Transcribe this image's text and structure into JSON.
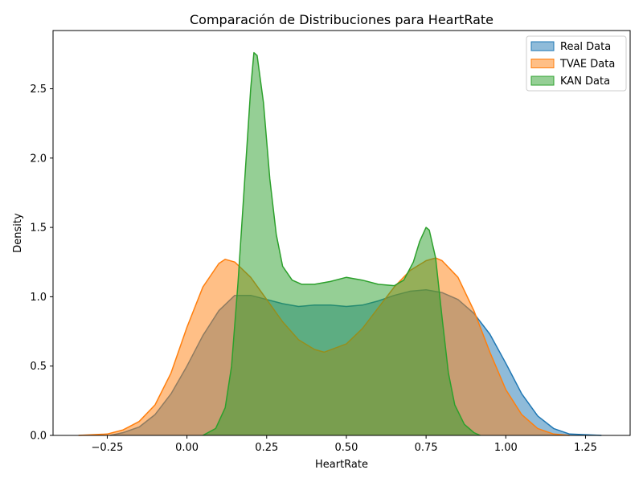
{
  "chart_data": {
    "type": "area",
    "title": "Comparación de Distribuciones para HeartRate",
    "xlabel": "HeartRate",
    "ylabel": "Density",
    "xlim": [
      -0.42,
      1.39
    ],
    "ylim": [
      0,
      2.92
    ],
    "xticks": [
      -0.25,
      0.0,
      0.25,
      0.5,
      0.75,
      1.0,
      1.25
    ],
    "xtick_labels": [
      "−0.25",
      "0.00",
      "0.25",
      "0.50",
      "0.75",
      "1.00",
      "1.25"
    ],
    "yticks": [
      0.0,
      0.5,
      1.0,
      1.5,
      2.0,
      2.5
    ],
    "ytick_labels": [
      "0.0",
      "0.5",
      "1.0",
      "1.5",
      "2.0",
      "2.5"
    ],
    "grid": false,
    "legend_position": "top-right",
    "series": [
      {
        "name": "Real Data",
        "color": "#1f77b4",
        "points": [
          [
            -0.24,
            0.0
          ],
          [
            -0.2,
            0.02
          ],
          [
            -0.15,
            0.06
          ],
          [
            -0.1,
            0.15
          ],
          [
            -0.05,
            0.3
          ],
          [
            0.0,
            0.5
          ],
          [
            0.05,
            0.72
          ],
          [
            0.1,
            0.9
          ],
          [
            0.15,
            1.01
          ],
          [
            0.2,
            1.01
          ],
          [
            0.25,
            0.98
          ],
          [
            0.3,
            0.95
          ],
          [
            0.35,
            0.93
          ],
          [
            0.4,
            0.94
          ],
          [
            0.45,
            0.94
          ],
          [
            0.5,
            0.93
          ],
          [
            0.55,
            0.94
          ],
          [
            0.6,
            0.97
          ],
          [
            0.65,
            1.01
          ],
          [
            0.7,
            1.04
          ],
          [
            0.75,
            1.05
          ],
          [
            0.8,
            1.03
          ],
          [
            0.85,
            0.98
          ],
          [
            0.9,
            0.88
          ],
          [
            0.95,
            0.73
          ],
          [
            1.0,
            0.52
          ],
          [
            1.05,
            0.3
          ],
          [
            1.1,
            0.14
          ],
          [
            1.15,
            0.05
          ],
          [
            1.2,
            0.01
          ],
          [
            1.3,
            0.0
          ]
        ]
      },
      {
        "name": "TVAE Data",
        "color": "#ff7f0e",
        "points": [
          [
            -0.34,
            0.0
          ],
          [
            -0.25,
            0.01
          ],
          [
            -0.2,
            0.04
          ],
          [
            -0.15,
            0.1
          ],
          [
            -0.1,
            0.22
          ],
          [
            -0.05,
            0.45
          ],
          [
            0.0,
            0.78
          ],
          [
            0.05,
            1.07
          ],
          [
            0.1,
            1.24
          ],
          [
            0.12,
            1.27
          ],
          [
            0.15,
            1.25
          ],
          [
            0.2,
            1.14
          ],
          [
            0.25,
            0.98
          ],
          [
            0.3,
            0.82
          ],
          [
            0.35,
            0.69
          ],
          [
            0.4,
            0.62
          ],
          [
            0.43,
            0.6
          ],
          [
            0.5,
            0.66
          ],
          [
            0.55,
            0.77
          ],
          [
            0.6,
            0.92
          ],
          [
            0.65,
            1.07
          ],
          [
            0.7,
            1.19
          ],
          [
            0.75,
            1.26
          ],
          [
            0.78,
            1.28
          ],
          [
            0.8,
            1.26
          ],
          [
            0.85,
            1.14
          ],
          [
            0.9,
            0.9
          ],
          [
            0.95,
            0.6
          ],
          [
            1.0,
            0.33
          ],
          [
            1.05,
            0.15
          ],
          [
            1.1,
            0.05
          ],
          [
            1.15,
            0.01
          ],
          [
            1.2,
            0.0
          ]
        ]
      },
      {
        "name": "KAN Data",
        "color": "#2ca02c",
        "points": [
          [
            0.05,
            0.0
          ],
          [
            0.09,
            0.05
          ],
          [
            0.12,
            0.2
          ],
          [
            0.14,
            0.5
          ],
          [
            0.16,
            1.1
          ],
          [
            0.18,
            1.8
          ],
          [
            0.2,
            2.5
          ],
          [
            0.21,
            2.76
          ],
          [
            0.22,
            2.74
          ],
          [
            0.24,
            2.4
          ],
          [
            0.26,
            1.85
          ],
          [
            0.28,
            1.45
          ],
          [
            0.3,
            1.22
          ],
          [
            0.33,
            1.12
          ],
          [
            0.36,
            1.09
          ],
          [
            0.4,
            1.09
          ],
          [
            0.45,
            1.11
          ],
          [
            0.5,
            1.14
          ],
          [
            0.55,
            1.12
          ],
          [
            0.6,
            1.09
          ],
          [
            0.65,
            1.08
          ],
          [
            0.68,
            1.12
          ],
          [
            0.71,
            1.25
          ],
          [
            0.73,
            1.4
          ],
          [
            0.75,
            1.5
          ],
          [
            0.76,
            1.48
          ],
          [
            0.78,
            1.28
          ],
          [
            0.8,
            0.85
          ],
          [
            0.82,
            0.45
          ],
          [
            0.84,
            0.22
          ],
          [
            0.87,
            0.08
          ],
          [
            0.9,
            0.02
          ],
          [
            0.92,
            0.0
          ]
        ]
      }
    ]
  }
}
